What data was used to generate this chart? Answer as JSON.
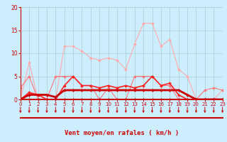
{
  "x": [
    0,
    1,
    2,
    3,
    4,
    5,
    6,
    7,
    8,
    9,
    10,
    11,
    12,
    13,
    14,
    15,
    16,
    17,
    18,
    19,
    20,
    21,
    22,
    23
  ],
  "series": [
    {
      "y": [
        0,
        8,
        0,
        0,
        0,
        11.5,
        11.5,
        10.5,
        9,
        8.5,
        9,
        8.5,
        6.5,
        12,
        16.5,
        16.5,
        11.5,
        13,
        6.5,
        5,
        0,
        0,
        0,
        2
      ],
      "color": "#ffaaaa",
      "lw": 0.8,
      "marker": "D",
      "ms": 2.0
    },
    {
      "y": [
        2.5,
        5,
        0,
        0,
        5,
        5,
        5,
        3,
        3,
        0,
        2.5,
        0,
        0,
        5,
        5,
        5,
        3,
        3,
        0,
        0,
        0,
        2,
        2.5,
        2
      ],
      "color": "#ff7777",
      "lw": 0.8,
      "marker": "D",
      "ms": 2.0
    },
    {
      "y": [
        0,
        1.5,
        1,
        0,
        0,
        3,
        5,
        3,
        3,
        2.5,
        3,
        2.5,
        3,
        2.5,
        3,
        5,
        3,
        3.5,
        1,
        0,
        0,
        0,
        0,
        0
      ],
      "color": "#ff2222",
      "lw": 1.2,
      "marker": "D",
      "ms": 2.0
    },
    {
      "y": [
        0,
        1,
        1,
        1,
        0.5,
        2,
        2,
        2,
        2,
        2,
        2,
        2,
        2,
        2,
        2,
        2,
        2,
        2,
        2,
        1,
        0,
        0,
        0,
        0
      ],
      "color": "#cc0000",
      "lw": 2.0,
      "marker": "D",
      "ms": 2.0
    },
    {
      "y": [
        0,
        0,
        0,
        0,
        0,
        0,
        0,
        0,
        0,
        0,
        0,
        0,
        0,
        0,
        0,
        0,
        0,
        0,
        0,
        0,
        0,
        0,
        0,
        0
      ],
      "color": "#880000",
      "lw": 0.8,
      "marker": "D",
      "ms": 2.0
    }
  ],
  "xlabel": "Vent moyen/en rafales ( km/h )",
  "xlim": [
    0,
    23
  ],
  "ylim": [
    0,
    20
  ],
  "yticks": [
    0,
    5,
    10,
    15,
    20
  ],
  "xticks": [
    0,
    1,
    2,
    3,
    4,
    5,
    6,
    7,
    8,
    9,
    10,
    11,
    12,
    13,
    14,
    15,
    16,
    17,
    18,
    19,
    20,
    21,
    22,
    23
  ],
  "bg_color": "#cceeff",
  "grid_color": "#aacccc",
  "arrow_color": "#cc0000",
  "xlabel_color": "#cc0000",
  "tick_color": "#cc0000",
  "spine_color": "#cc0000"
}
